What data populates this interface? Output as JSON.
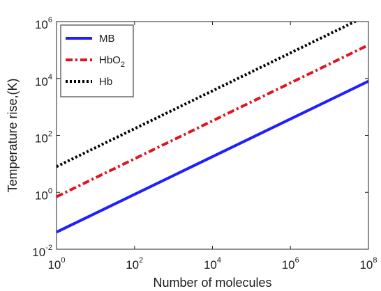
{
  "chart_data": {
    "type": "line",
    "title": "",
    "xlabel": "Number of molecules",
    "ylabel": "Temperature rise,(K)",
    "xscale": "log",
    "yscale": "log",
    "xlim": [
      1,
      100000000
    ],
    "ylim": [
      0.01,
      1000000
    ],
    "grid": false,
    "legend_position": "top-left",
    "x_ticks": [
      {
        "base": "10",
        "exp": "0",
        "value": 1
      },
      {
        "base": "10",
        "exp": "2",
        "value": 100
      },
      {
        "base": "10",
        "exp": "4",
        "value": 10000
      },
      {
        "base": "10",
        "exp": "6",
        "value": 1000000
      },
      {
        "base": "10",
        "exp": "8",
        "value": 100000000
      }
    ],
    "y_ticks": [
      {
        "base": "10",
        "exp": "-2",
        "value": 0.01
      },
      {
        "base": "10",
        "exp": "0",
        "value": 1
      },
      {
        "base": "10",
        "exp": "2",
        "value": 100
      },
      {
        "base": "10",
        "exp": "4",
        "value": 10000
      },
      {
        "base": "10",
        "exp": "6",
        "value": 1000000
      }
    ],
    "series": [
      {
        "name": "MB",
        "name_sub": "",
        "name_tail": "",
        "color": "#1f1fff",
        "dash": "solid",
        "x": [
          1,
          100000000
        ],
        "y": [
          0.04,
          8000
        ]
      },
      {
        "name": "HbO",
        "name_sub": "2",
        "name_tail": "",
        "color": "#e0141e",
        "dash": "dashdot",
        "x": [
          1,
          100000000
        ],
        "y": [
          0.7,
          150000
        ]
      },
      {
        "name": "Hb",
        "name_sub": "",
        "name_tail": "",
        "color": "#000000",
        "dash": "dotted",
        "x": [
          1,
          100000000
        ],
        "y": [
          8,
          1700000
        ]
      }
    ]
  }
}
